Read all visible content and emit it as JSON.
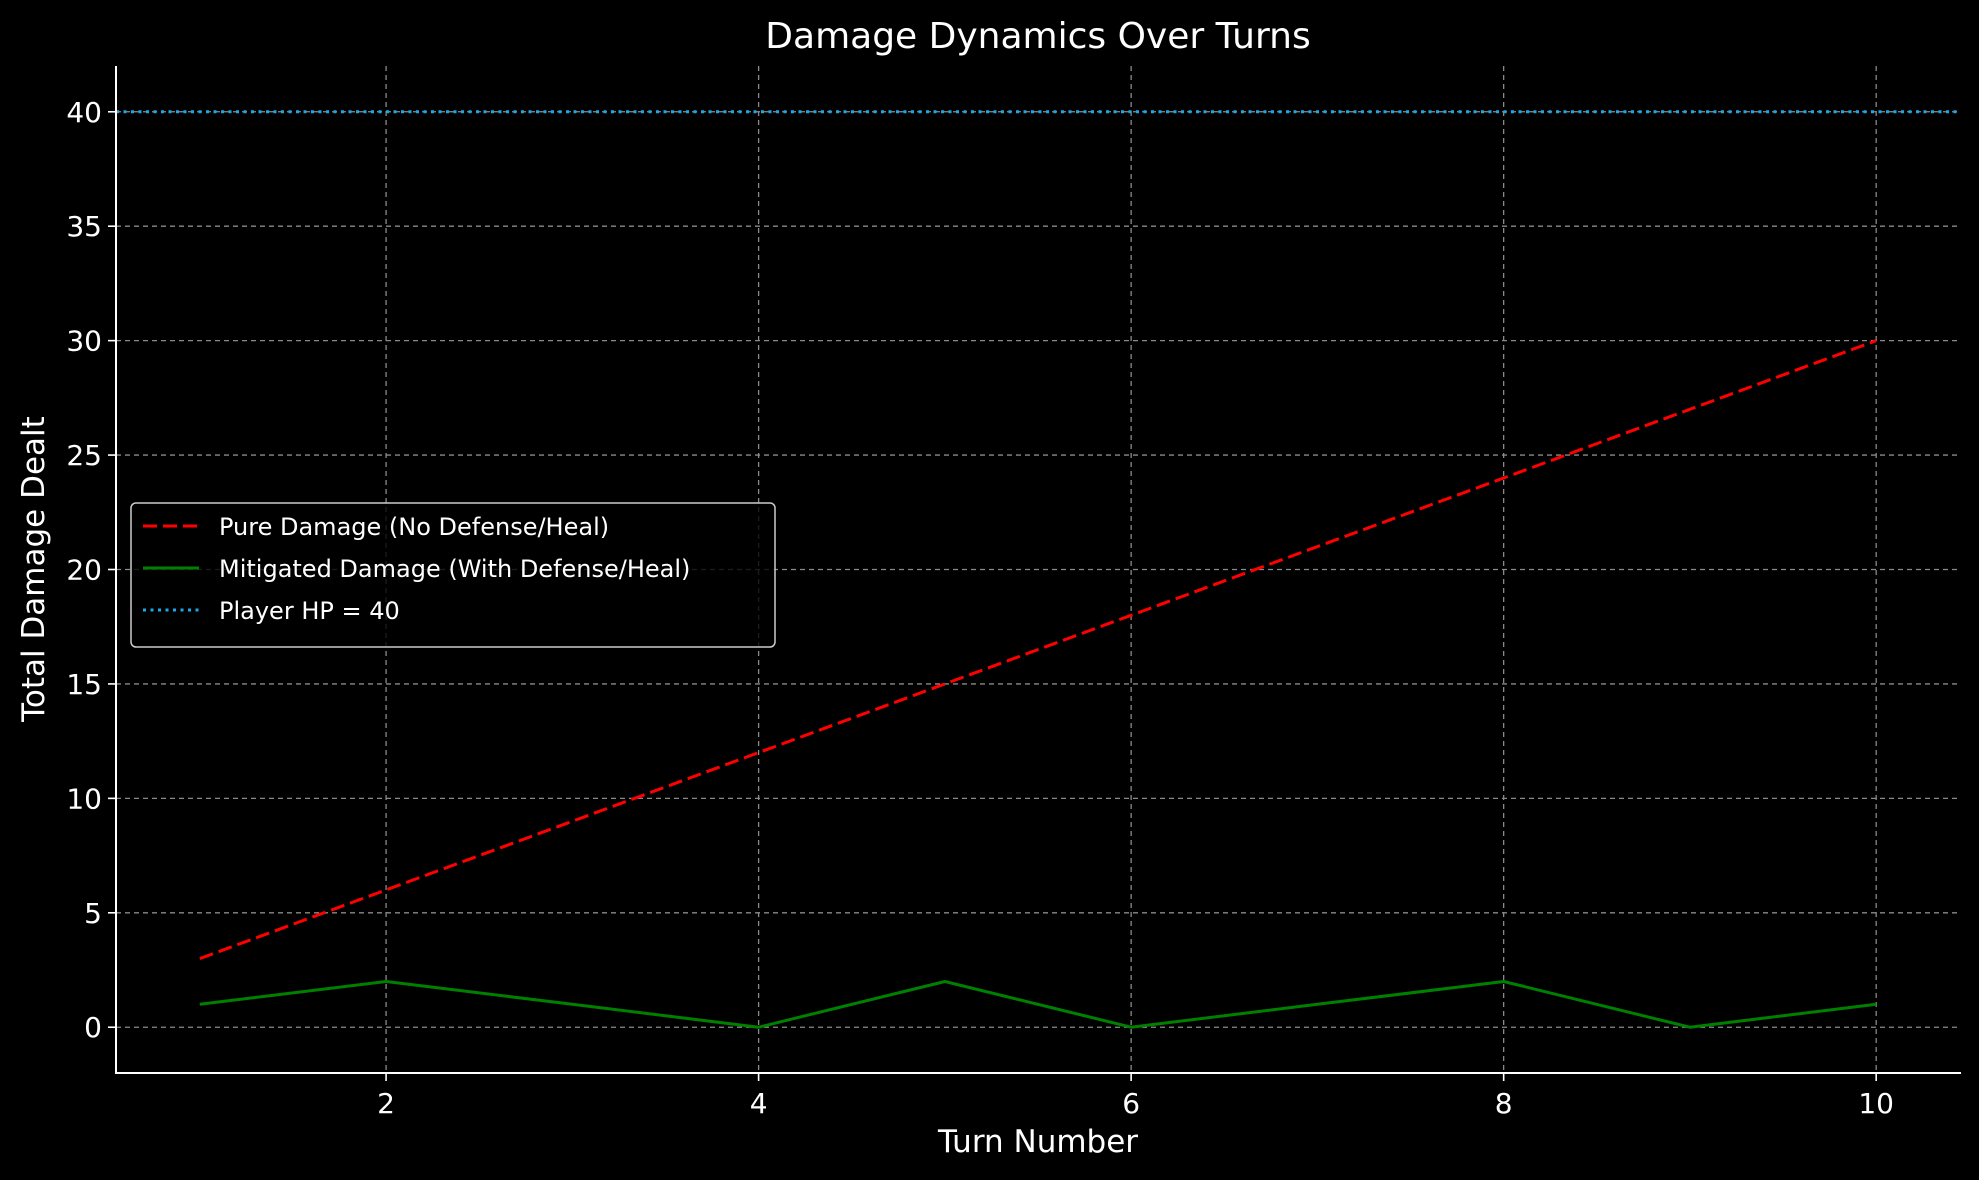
{
  "chart_data": {
    "type": "line",
    "title": "Damage Dynamics Over Turns",
    "xlabel": "Turn Number",
    "ylabel": "Total Damage Dealt",
    "x": [
      1,
      2,
      3,
      4,
      5,
      6,
      7,
      8,
      9,
      10
    ],
    "xlim": [
      0.55,
      10.45
    ],
    "ylim": [
      -2,
      42
    ],
    "xticks": [
      2,
      4,
      6,
      8,
      10
    ],
    "yticks": [
      0,
      5,
      10,
      15,
      20,
      25,
      30,
      35,
      40
    ],
    "grid": true,
    "legend_position": "center-left",
    "series": [
      {
        "name": "Pure Damage (No Defense/Heal)",
        "values": [
          3,
          6,
          9,
          12,
          15,
          18,
          21,
          24,
          27,
          30
        ],
        "color": "#ff0000",
        "style": "dashed"
      },
      {
        "name": "Mitigated Damage (With Defense/Heal)",
        "values": [
          1,
          2,
          1,
          0,
          2,
          0,
          1,
          2,
          0,
          1
        ],
        "color": "#008000",
        "style": "solid"
      }
    ],
    "hlines": [
      {
        "name": "Player HP = 40",
        "value": 40,
        "color": "#1ea7e8",
        "style": "dotted"
      }
    ]
  }
}
